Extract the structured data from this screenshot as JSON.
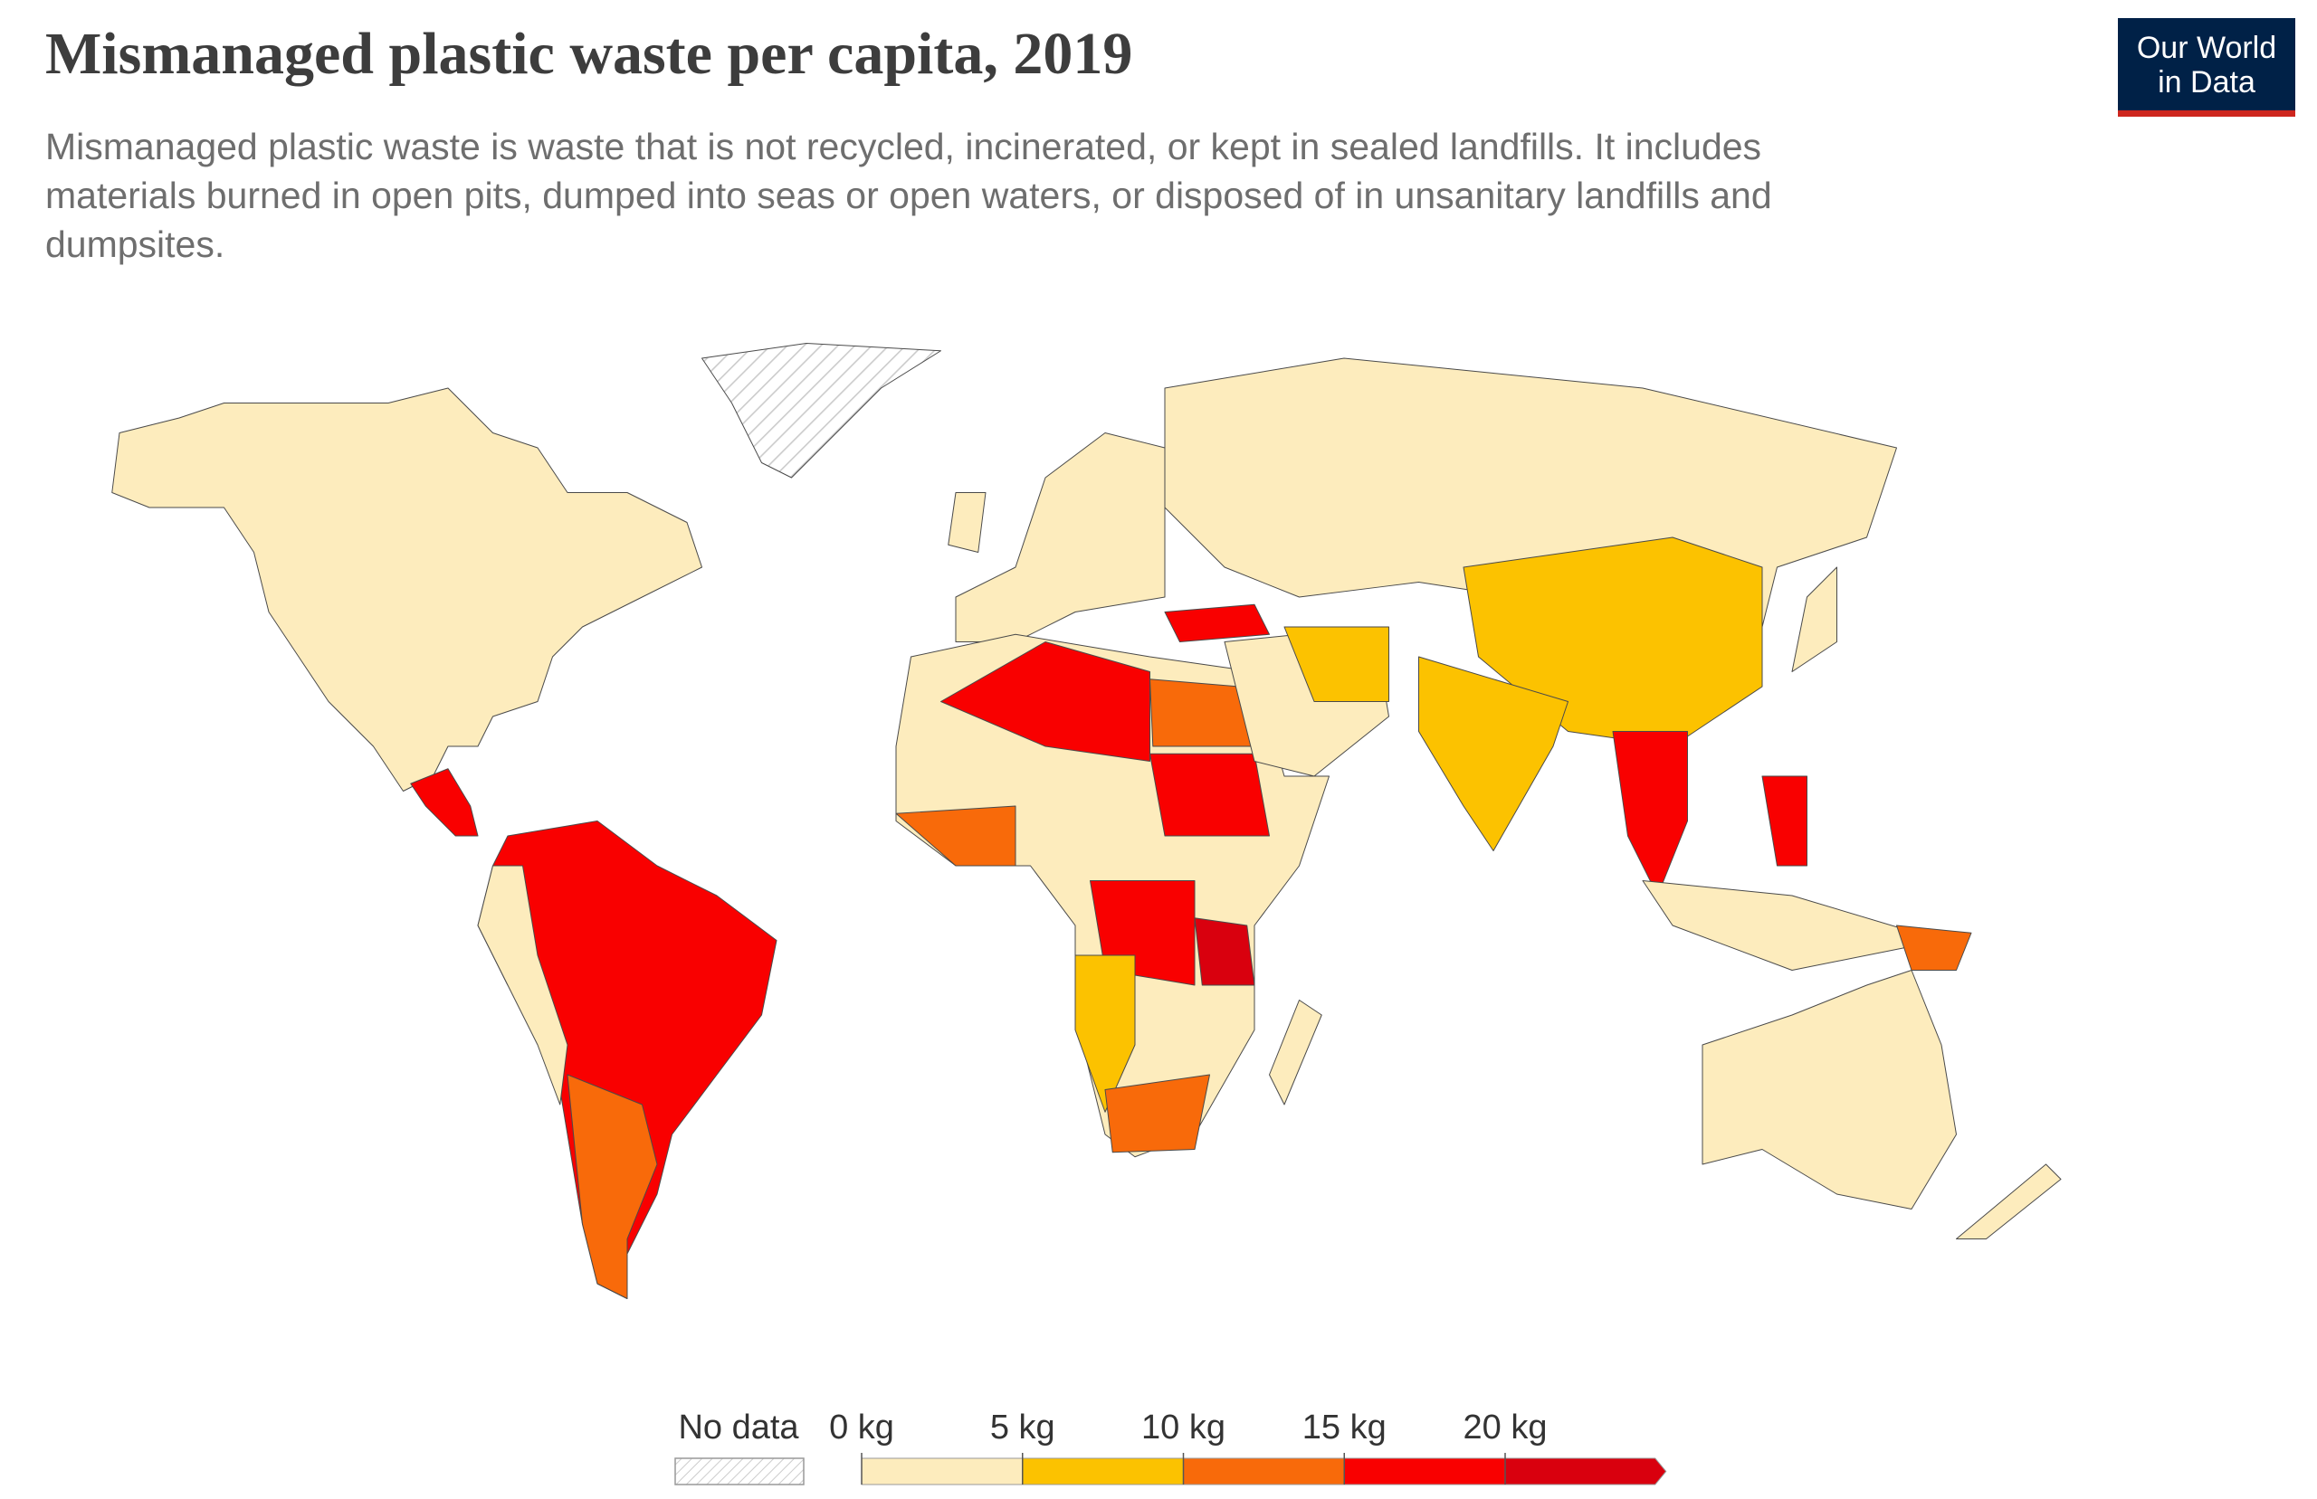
{
  "header": {
    "title": "Mismanaged plastic waste per capita, 2019",
    "subtitle_lines": [
      "Mismanaged plastic waste is waste that is not recycled, incinerated, or kept in sealed landfills. It includes",
      "materials burned in open pits, dumped into seas or open waters, or disposed of in unsanitary landfills and",
      "dumpsites."
    ]
  },
  "logo": {
    "lines": [
      "Our World",
      "in Data"
    ]
  },
  "legend": {
    "no_data_label": "No data",
    "ticks": [
      {
        "value": 0,
        "label": "0 kg"
      },
      {
        "value": 5,
        "label": "5 kg"
      },
      {
        "value": 10,
        "label": "10 kg"
      },
      {
        "value": 15,
        "label": "15 kg"
      },
      {
        "value": 20,
        "label": "20 kg"
      }
    ],
    "colors": [
      "#fdecbd",
      "#fcc200",
      "#f86a0a",
      "#f90000",
      "#d9000e"
    ]
  }
}
